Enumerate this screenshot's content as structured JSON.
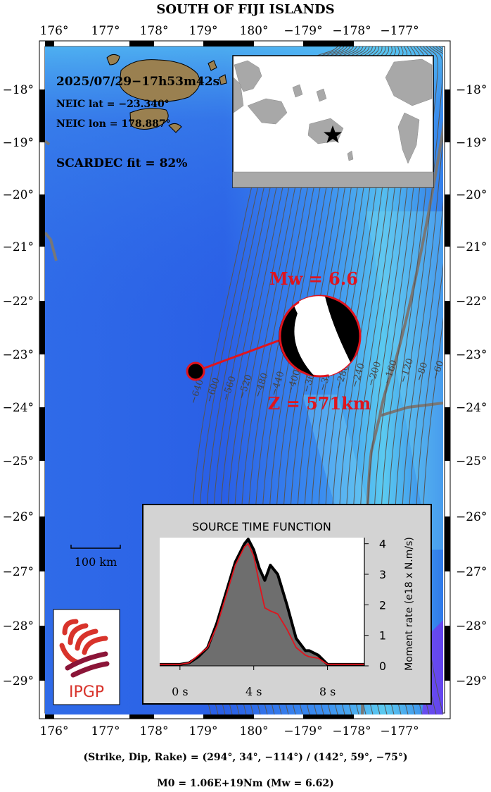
{
  "title": "SOUTH OF FIJI ISLANDS",
  "axes": {
    "lon_labels": [
      "176°",
      "177°",
      "178°",
      "179°",
      "180°",
      "−179°",
      "−178°",
      "−177°"
    ],
    "lat_labels": [
      "−18°",
      "−19°",
      "−20°",
      "−21°",
      "−22°",
      "−23°",
      "−24°",
      "−25°",
      "−26°",
      "−27°",
      "−28°",
      "−29°"
    ]
  },
  "event": {
    "datetime": "2025/07/29−17h53m42s",
    "lat_text": "NEIC lat  = −23.340°",
    "lon_text": "NEIC lon = 178.887°",
    "fit_text": "SCARDEC fit = 82%",
    "magnitude_text": "Mw = 6.6",
    "depth_text": "Z = 571km"
  },
  "slab_contours": [
    "−640",
    "−600",
    "−560",
    "−520",
    "−480",
    "−440",
    "−400",
    "−360",
    "−320",
    "−280",
    "−240",
    "−200",
    "−160",
    "−120",
    "−80",
    "−60"
  ],
  "scale_bar": {
    "label": "100 km"
  },
  "logo": {
    "text": "IPGP"
  },
  "stf": {
    "title": "SOURCE TIME FUNCTION",
    "ylabel": "Moment rate (e18 x N.m/s)",
    "x_ticks": [
      "0 s",
      "4 s",
      "8 s"
    ],
    "y_ticks": [
      "0",
      "1",
      "2",
      "3",
      "4"
    ]
  },
  "colors": {
    "ocean_deep": "#2a5fe6",
    "ocean_shallow": "#56c8f2",
    "land": "#9a8050",
    "beachball_fill": "#000000",
    "event_red": "#e0141e",
    "stf_fill": "#6e6e6e",
    "panel_bg": "#d3d3d3"
  },
  "footer": {
    "mechanism": "(Strike, Dip, Rake) = (294°, 34°, −114°) / (142°, 59°, −75°)",
    "moment": "M0 = 1.06E+19Nm  (Mw = 6.62)"
  },
  "chart_data": {
    "type": "area",
    "title": "SOURCE TIME FUNCTION",
    "xlabel": "",
    "ylabel": "Moment rate (e18 x N.m/s)",
    "xlim": [
      -1.1,
      10
    ],
    "ylim": [
      0,
      4.2
    ],
    "x_ticks": [
      0,
      4,
      8
    ],
    "y_ticks": [
      0,
      1,
      2,
      3,
      4
    ],
    "series": [
      {
        "x": [
          -1.1,
          0,
          0.5,
          1.0,
          1.5,
          2.0,
          2.5,
          3.0,
          3.5,
          3.7,
          4.0,
          4.3,
          4.6,
          4.9,
          5.3,
          5.8,
          6.3,
          6.8,
          7.0,
          7.5,
          8.0,
          10
        ],
        "values": [
          0.05,
          0.05,
          0.1,
          0.3,
          0.6,
          1.4,
          2.4,
          3.4,
          4.0,
          4.15,
          3.8,
          3.2,
          2.8,
          3.3,
          3.0,
          2.0,
          0.9,
          0.5,
          0.5,
          0.35,
          0.05,
          0.05
        ]
      },
      {
        "x": [
          -1.1,
          0,
          0.5,
          1.0,
          1.5,
          2.0,
          2.5,
          3.0,
          3.5,
          3.7,
          4.0,
          4.3,
          4.6,
          4.9,
          5.3,
          5.8,
          6.3,
          6.8,
          7.0,
          7.5,
          8.0,
          10
        ],
        "values": [
          0.05,
          0.05,
          0.1,
          0.35,
          0.6,
          1.3,
          2.3,
          3.3,
          3.9,
          4.0,
          3.6,
          2.7,
          1.9,
          1.8,
          1.7,
          1.2,
          0.6,
          0.35,
          0.3,
          0.25,
          0.05,
          0.05
        ]
      }
    ]
  }
}
